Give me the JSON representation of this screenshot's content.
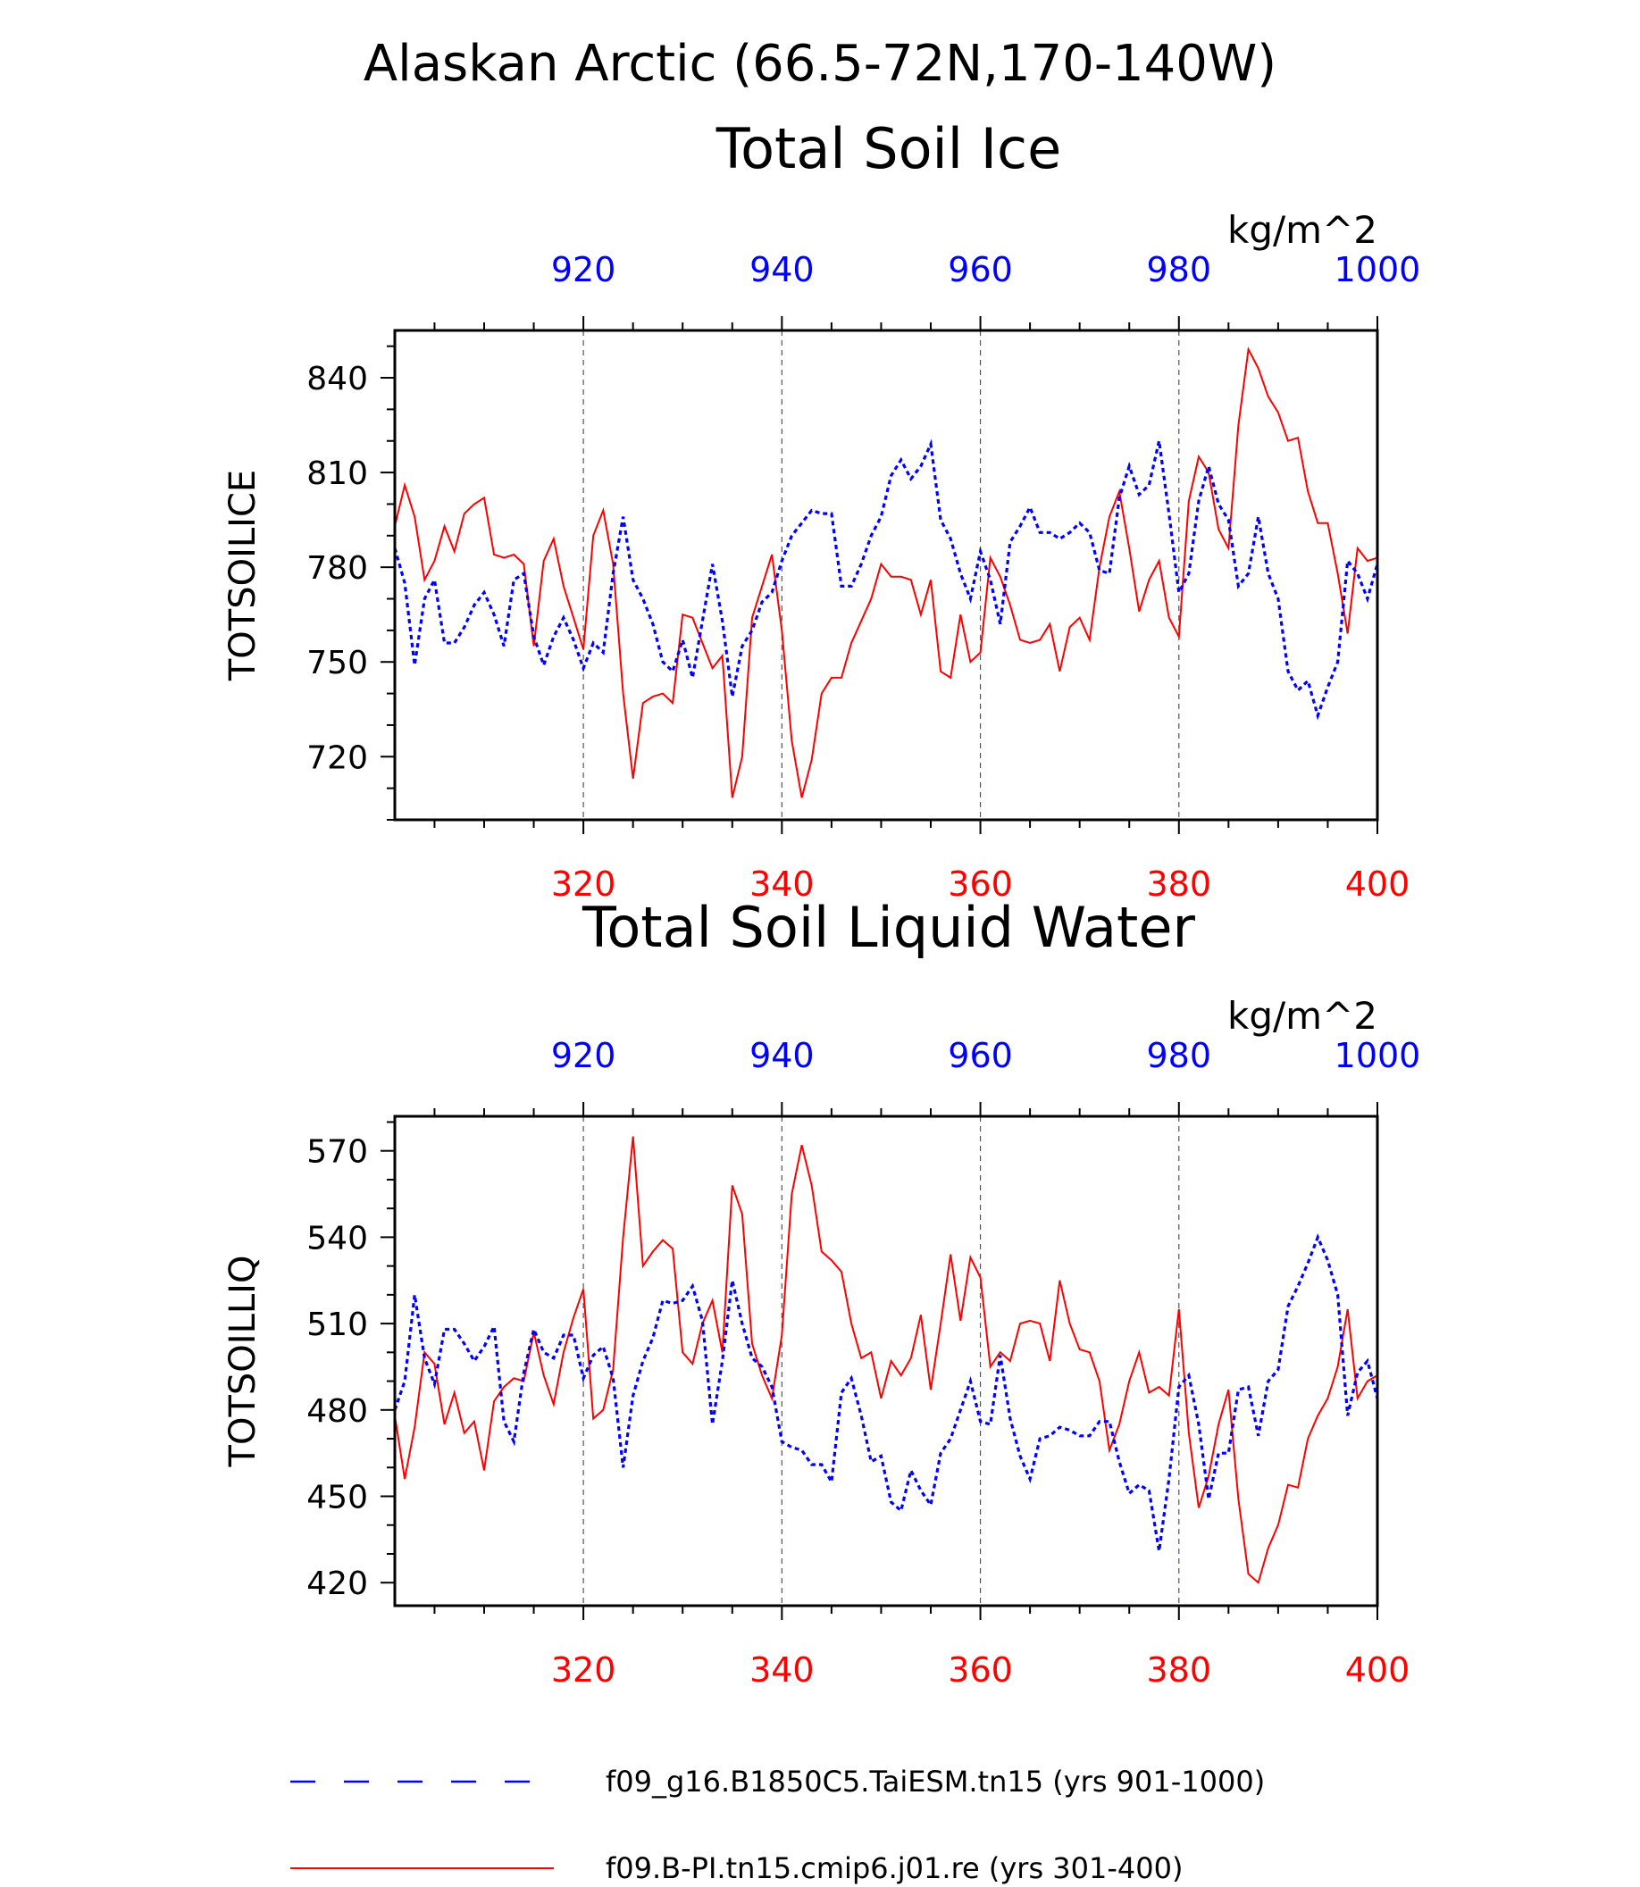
{
  "figure": {
    "title_line1": "Alaskan Arctic (66.5-72N,170-140W)",
    "unit": "kg/m^2",
    "colors": {
      "series_b": "#ff0000",
      "series_a": "#0000ff",
      "axis": "#000000",
      "grid": "#555555"
    }
  },
  "legend": {
    "items": [
      {
        "label": "f09_g16.B1850C5.TaiESM.tn15 (yrs 901-1000)",
        "style": "dashed",
        "color": "#0000ff"
      },
      {
        "label": "f09.B-PI.tn15.cmip6.j01.re (yrs 301-400)",
        "style": "solid",
        "color": "#ff0000"
      }
    ]
  },
  "chart_data": [
    {
      "type": "line",
      "title": "Total Soil Ice",
      "ylabel": "TOTSOILICE",
      "unit": "kg/m^2",
      "ylim": [
        700,
        855
      ],
      "yticks": [
        720,
        750,
        780,
        810,
        840
      ],
      "x_bottom": {
        "lim": [
          301,
          400
        ],
        "ticks": [
          320,
          340,
          360,
          380,
          400
        ],
        "color": "#ff0000"
      },
      "x_top": {
        "lim": [
          901,
          1000
        ],
        "ticks": [
          920,
          940,
          960,
          980,
          1000
        ],
        "color": "#0000ff"
      },
      "series": [
        {
          "name": "f09.B-PI.tn15.cmip6.j01.re (yrs 301-400)",
          "axis": "bottom",
          "style": "solid",
          "color": "#ff0000",
          "x0": 301,
          "values": [
            793,
            806,
            796,
            776,
            782,
            793,
            785,
            797,
            800,
            802,
            784,
            783,
            784,
            781,
            755,
            782,
            789,
            774,
            764,
            754,
            790,
            798,
            781,
            740,
            713,
            737,
            739,
            740,
            737,
            765,
            764,
            756,
            748,
            752,
            707,
            720,
            764,
            774,
            784,
            760,
            725,
            707,
            719,
            740,
            745,
            745,
            756,
            763,
            770,
            781,
            777,
            777,
            776,
            765,
            776,
            747,
            745,
            765,
            750,
            753,
            783,
            777,
            768,
            757,
            756,
            757,
            762,
            747,
            761,
            764,
            757,
            780,
            796,
            804,
            786,
            766,
            776,
            782,
            764,
            758,
            801,
            815,
            810,
            792,
            786,
            825,
            849,
            843,
            834,
            829,
            820,
            821,
            804,
            794,
            794,
            778,
            759,
            786,
            782,
            783
          ]
        },
        {
          "name": "f09_g16.B1850C5.TaiESM.tn15 (yrs 901-1000)",
          "axis": "top",
          "style": "dashed",
          "color": "#0000ff",
          "x0": 901,
          "values": [
            786,
            775,
            749,
            770,
            776,
            756,
            756,
            761,
            768,
            772,
            765,
            755,
            776,
            778,
            758,
            749,
            758,
            764,
            757,
            748,
            756,
            753,
            778,
            796,
            776,
            770,
            762,
            750,
            747,
            757,
            745,
            763,
            781,
            763,
            739,
            755,
            760,
            769,
            772,
            782,
            790,
            794,
            798,
            797,
            797,
            774,
            774,
            781,
            790,
            796,
            809,
            814,
            808,
            812,
            819,
            795,
            789,
            778,
            770,
            785,
            776,
            762,
            788,
            793,
            799,
            791,
            791,
            789,
            791,
            794,
            791,
            779,
            778,
            802,
            812,
            803,
            806,
            820,
            797,
            772,
            778,
            801,
            812,
            800,
            795,
            774,
            778,
            796,
            778,
            770,
            747,
            741,
            744,
            733,
            742,
            750,
            782,
            778,
            770,
            781
          ]
        }
      ]
    },
    {
      "type": "line",
      "title": "Total Soil Liquid Water",
      "ylabel": "TOTSOILLIQ",
      "unit": "kg/m^2",
      "ylim": [
        412,
        582
      ],
      "yticks": [
        420,
        450,
        480,
        510,
        540,
        570
      ],
      "x_bottom": {
        "lim": [
          301,
          400
        ],
        "ticks": [
          320,
          340,
          360,
          380,
          400
        ],
        "color": "#ff0000"
      },
      "x_top": {
        "lim": [
          901,
          1000
        ],
        "ticks": [
          920,
          940,
          960,
          980,
          1000
        ],
        "color": "#0000ff"
      },
      "series": [
        {
          "name": "f09.B-PI.tn15.cmip6.j01.re (yrs 301-400)",
          "axis": "bottom",
          "style": "solid",
          "color": "#ff0000",
          "x0": 301,
          "values": [
            478,
            456,
            474,
            500,
            496,
            475,
            486,
            472,
            476,
            459,
            483,
            488,
            491,
            490,
            507,
            492,
            482,
            500,
            512,
            522,
            477,
            480,
            494,
            540,
            575,
            530,
            535,
            539,
            536,
            500,
            496,
            510,
            518,
            500,
            558,
            548,
            503,
            492,
            484,
            506,
            555,
            572,
            558,
            535,
            532,
            528,
            510,
            498,
            500,
            484,
            497,
            492,
            498,
            513,
            487,
            510,
            534,
            511,
            533,
            526,
            495,
            500,
            497,
            510,
            511,
            510,
            497,
            525,
            510,
            501,
            500,
            490,
            466,
            475,
            490,
            500,
            486,
            488,
            485,
            515,
            472,
            446,
            457,
            475,
            487,
            449,
            423,
            420,
            432,
            440,
            454,
            453,
            470,
            478,
            484,
            495,
            515,
            484,
            490,
            492
          ]
        },
        {
          "name": "f09_g16.B1850C5.TaiESM.tn15 (yrs 901-1000)",
          "axis": "top",
          "style": "dashed",
          "color": "#0000ff",
          "x0": 901,
          "values": [
            480,
            490,
            520,
            498,
            489,
            508,
            508,
            503,
            497,
            502,
            509,
            476,
            469,
            493,
            508,
            500,
            498,
            506,
            506,
            491,
            499,
            502,
            491,
            460,
            485,
            497,
            505,
            518,
            517,
            518,
            523,
            511,
            475,
            497,
            525,
            510,
            498,
            495,
            488,
            469,
            467,
            466,
            461,
            461,
            455,
            486,
            491,
            478,
            462,
            464,
            448,
            445,
            459,
            452,
            447,
            465,
            470,
            480,
            490,
            476,
            475,
            499,
            477,
            464,
            456,
            470,
            471,
            474,
            473,
            471,
            471,
            476,
            476,
            462,
            451,
            454,
            452,
            431,
            456,
            488,
            492,
            475,
            449,
            465,
            465,
            487,
            488,
            471,
            490,
            494,
            516,
            523,
            531,
            540,
            532,
            520,
            478,
            493,
            497,
            484
          ]
        }
      ]
    }
  ]
}
